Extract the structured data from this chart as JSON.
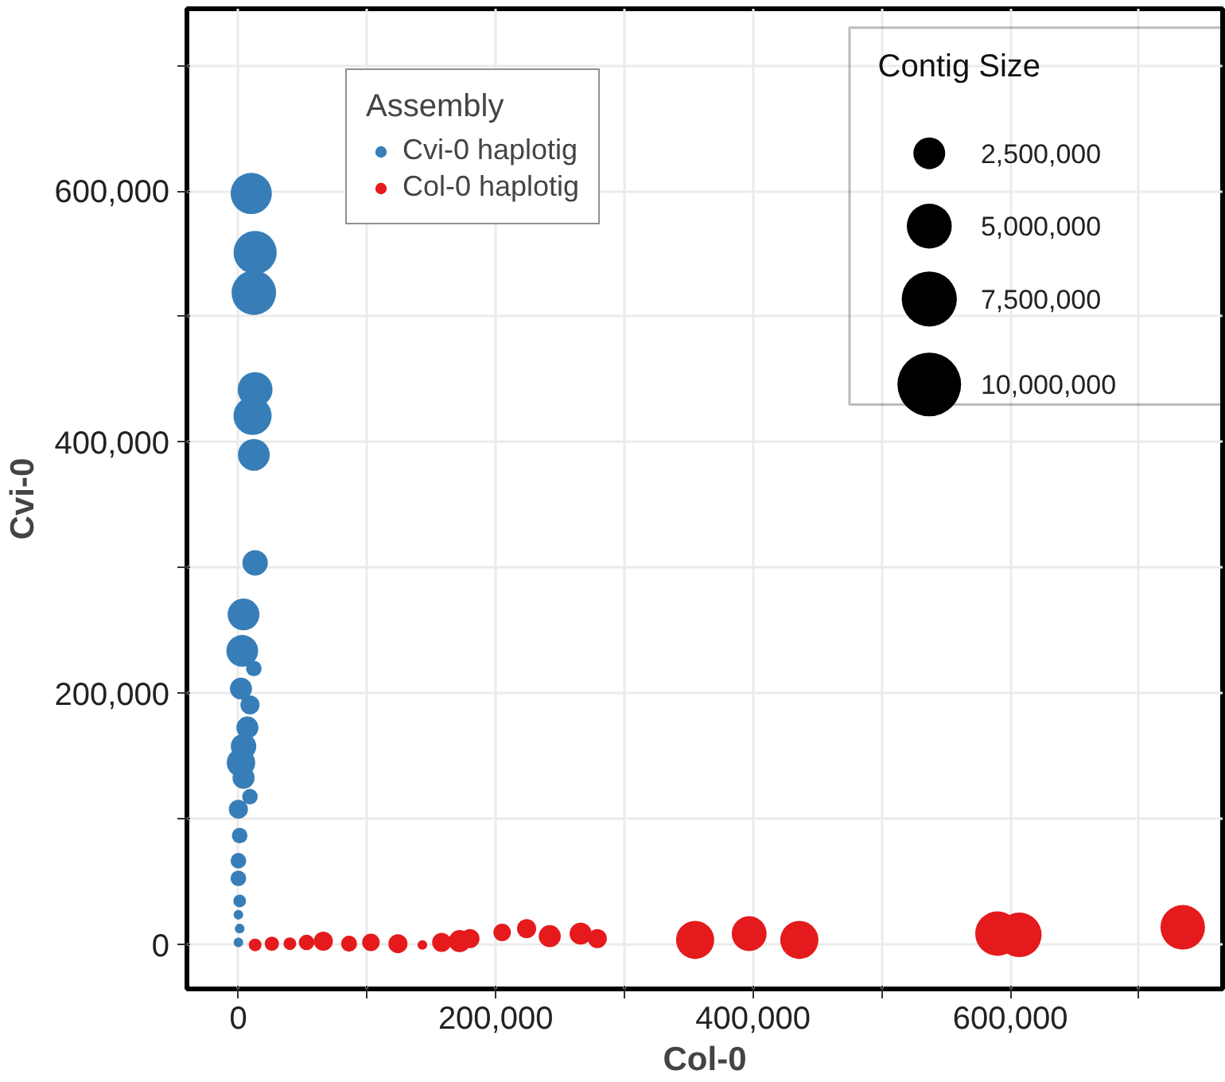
{
  "chart_data": {
    "type": "bubble",
    "xlabel": "Col-0",
    "ylabel": "Cvi-0",
    "legend_title": "Assembly",
    "legend": "top",
    "grid": true,
    "marker": "circle",
    "annotations": [
      "Contig Size"
    ],
    "xlim": [
      -40000,
      765000
    ],
    "ylim": [
      -35000,
      745000
    ],
    "xticks": [
      0,
      {
        "value": 100000,
        "label": null
      },
      {
        "value": 200000,
        "label": "200,000"
      },
      {
        "value": 300000,
        "label": null
      },
      {
        "value": 400000,
        "label": "400,000"
      },
      {
        "value": 500000,
        "label": null
      },
      {
        "value": 600000,
        "label": "600,000"
      },
      {
        "value": 700000,
        "label": null
      }
    ],
    "yticks": [
      0,
      {
        "value": 100000,
        "label": null
      },
      {
        "value": 200000,
        "label": "200,000"
      },
      {
        "value": 300000,
        "label": null
      },
      {
        "value": 400000,
        "label": "400,000"
      },
      {
        "value": 500000,
        "label": null
      },
      {
        "value": 600000,
        "label": "600,000"
      },
      {
        "value": 700000,
        "label": null
      }
    ],
    "size_legend": [
      {
        "value": 2500000,
        "label": "2,500,000"
      },
      {
        "value": 5000000,
        "label": "5,000,000"
      },
      {
        "value": 7500000,
        "label": "7,500,000"
      },
      {
        "value": 10000000,
        "label": "10,000,000"
      }
    ],
    "series": [
      {
        "name": "Cvi-0 haplotig",
        "color": "#377eb8",
        "x": [
          10000,
          13000,
          12000,
          13000,
          11000,
          12000,
          13000,
          4000,
          3000,
          12000,
          2000,
          9000,
          7000,
          4000,
          2000,
          4000,
          9000,
          0,
          1000,
          0,
          0,
          1000,
          0,
          1000,
          0
        ],
        "values": [
          598000,
          551000,
          519000,
          442000,
          421000,
          390000,
          304000,
          263000,
          234000,
          220000,
          204000,
          191000,
          173000,
          158000,
          145000,
          133000,
          118000,
          108000,
          87000,
          67000,
          53000,
          35000,
          24000,
          13000,
          2000
        ],
        "sizes": [
          4200000,
          4600000,
          4900000,
          3000000,
          3600000,
          2500000,
          1600000,
          2500000,
          2500000,
          600000,
          1200000,
          900000,
          1200000,
          1600000,
          2000000,
          1200000,
          600000,
          900000,
          600000,
          600000,
          600000,
          400000,
          230000,
          230000,
          230000
        ]
      },
      {
        "name": "Col-0 haplotig",
        "color": "#e41a1c",
        "x": [
          13000,
          26000,
          40000,
          53000,
          66000,
          86000,
          103000,
          124000,
          143000,
          158000,
          172000,
          180000,
          205000,
          224000,
          242000,
          266000,
          279000,
          355000,
          397000,
          436000,
          590000,
          607000,
          734000
        ],
        "values": [
          0,
          1000,
          1000,
          2000,
          3000,
          1000,
          2000,
          1000,
          0,
          2000,
          3000,
          5000,
          10000,
          13000,
          7000,
          9000,
          5000,
          4000,
          9000,
          4000,
          9000,
          8000,
          14000
        ],
        "sizes": [
          400000,
          500000,
          400000,
          600000,
          900000,
          630000,
          760000,
          900000,
          230000,
          900000,
          1200000,
          900000,
          760000,
          900000,
          1200000,
          1200000,
          900000,
          3600000,
          3000000,
          3600000,
          4900000,
          4900000,
          4900000
        ]
      }
    ]
  }
}
